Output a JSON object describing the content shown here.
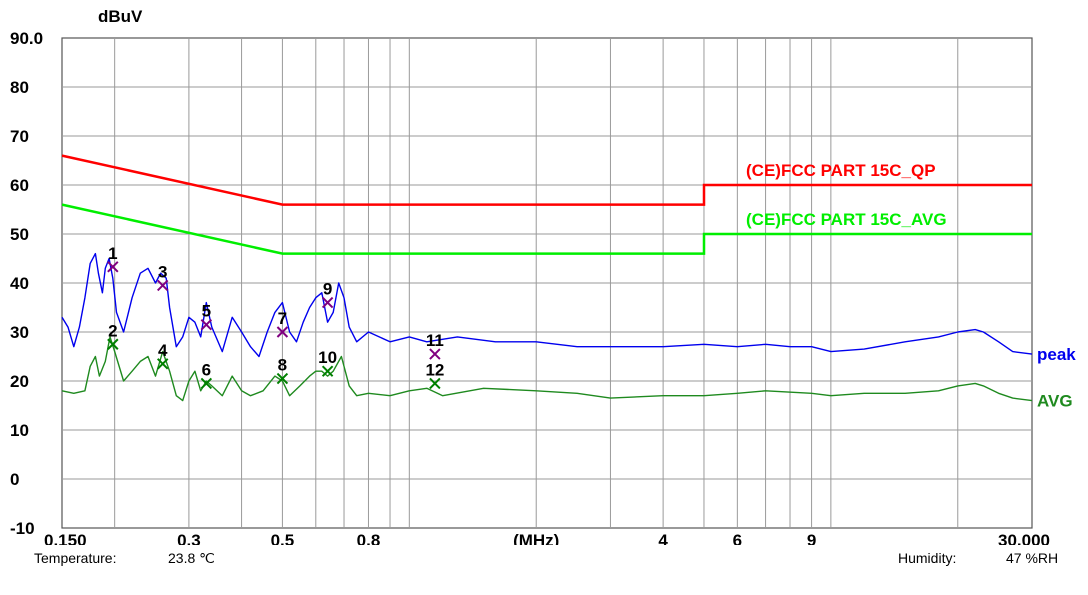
{
  "chart_data": {
    "type": "line",
    "ylabel": "dBuV",
    "xlabel": "(MHz)",
    "ylim": [
      -10,
      90
    ],
    "xlim": [
      0.15,
      30
    ],
    "x_scale": "log",
    "grid": true,
    "y_ticks": [
      "90.0",
      "80",
      "70",
      "60",
      "50",
      "40",
      "30",
      "20",
      "10",
      "0",
      "-10"
    ],
    "x_ticks": [
      {
        "label": "0.150",
        "value": 0.15
      },
      {
        "label": "0.3",
        "value": 0.3
      },
      {
        "label": "0.5",
        "value": 0.5
      },
      {
        "label": "0.8",
        "value": 0.8
      },
      {
        "label": "(MHz)",
        "value": 2.0
      },
      {
        "label": "4",
        "value": 4
      },
      {
        "label": "6",
        "value": 6
      },
      {
        "label": "9",
        "value": 9
      },
      {
        "label": "30.000",
        "value": 30
      }
    ],
    "limits": [
      {
        "name": "(CE)FCC PART 15C_QP",
        "color": "#ff0000",
        "points": [
          [
            0.15,
            66
          ],
          [
            0.5,
            56
          ],
          [
            5,
            56
          ],
          [
            5,
            60
          ],
          [
            30,
            60
          ]
        ]
      },
      {
        "name": "(CE)FCC PART 15C_AVG",
        "color": "#00ee00",
        "points": [
          [
            0.15,
            56
          ],
          [
            0.5,
            46
          ],
          [
            5,
            46
          ],
          [
            5,
            50
          ],
          [
            30,
            50
          ]
        ]
      }
    ],
    "series": [
      {
        "name": "peak",
        "color": "#0000ee",
        "points": [
          [
            0.15,
            33
          ],
          [
            0.155,
            31
          ],
          [
            0.16,
            27
          ],
          [
            0.165,
            31
          ],
          [
            0.17,
            37
          ],
          [
            0.175,
            44
          ],
          [
            0.18,
            46
          ],
          [
            0.183,
            42
          ],
          [
            0.187,
            38
          ],
          [
            0.19,
            43
          ],
          [
            0.194,
            45
          ],
          [
            0.198,
            41
          ],
          [
            0.202,
            34
          ],
          [
            0.21,
            30
          ],
          [
            0.22,
            37
          ],
          [
            0.23,
            42
          ],
          [
            0.24,
            43
          ],
          [
            0.25,
            40
          ],
          [
            0.257,
            42
          ],
          [
            0.265,
            41
          ],
          [
            0.27,
            35
          ],
          [
            0.28,
            27
          ],
          [
            0.29,
            29
          ],
          [
            0.3,
            33
          ],
          [
            0.31,
            32
          ],
          [
            0.32,
            29
          ],
          [
            0.33,
            36
          ],
          [
            0.34,
            31
          ],
          [
            0.36,
            26
          ],
          [
            0.38,
            33
          ],
          [
            0.4,
            30
          ],
          [
            0.42,
            27
          ],
          [
            0.44,
            25
          ],
          [
            0.46,
            30
          ],
          [
            0.48,
            34
          ],
          [
            0.5,
            36
          ],
          [
            0.52,
            30
          ],
          [
            0.54,
            28
          ],
          [
            0.56,
            32
          ],
          [
            0.58,
            35
          ],
          [
            0.6,
            37
          ],
          [
            0.62,
            38
          ],
          [
            0.64,
            32
          ],
          [
            0.66,
            34
          ],
          [
            0.68,
            40
          ],
          [
            0.7,
            37
          ],
          [
            0.72,
            31
          ],
          [
            0.75,
            28
          ],
          [
            0.8,
            30
          ],
          [
            0.9,
            28
          ],
          [
            1.0,
            29
          ],
          [
            1.1,
            28
          ],
          [
            1.3,
            29
          ],
          [
            1.6,
            28
          ],
          [
            2.0,
            28
          ],
          [
            2.5,
            27
          ],
          [
            3,
            27
          ],
          [
            4,
            27
          ],
          [
            5,
            27.5
          ],
          [
            6,
            27
          ],
          [
            7,
            27.5
          ],
          [
            8,
            27
          ],
          [
            9,
            27
          ],
          [
            10,
            26
          ],
          [
            12,
            26.5
          ],
          [
            15,
            28
          ],
          [
            18,
            29
          ],
          [
            20,
            30
          ],
          [
            22,
            30.5
          ],
          [
            23,
            30
          ],
          [
            25,
            28
          ],
          [
            27,
            26
          ],
          [
            30,
            25.5
          ]
        ]
      },
      {
        "name": "AVG",
        "color": "#1f8a1f",
        "points": [
          [
            0.15,
            18
          ],
          [
            0.16,
            17.5
          ],
          [
            0.17,
            18
          ],
          [
            0.175,
            23
          ],
          [
            0.18,
            25
          ],
          [
            0.184,
            21
          ],
          [
            0.19,
            24
          ],
          [
            0.195,
            29
          ],
          [
            0.2,
            26
          ],
          [
            0.21,
            20
          ],
          [
            0.22,
            22
          ],
          [
            0.23,
            24
          ],
          [
            0.24,
            25
          ],
          [
            0.25,
            21
          ],
          [
            0.26,
            26
          ],
          [
            0.27,
            22
          ],
          [
            0.28,
            17
          ],
          [
            0.29,
            16
          ],
          [
            0.3,
            20
          ],
          [
            0.31,
            22
          ],
          [
            0.32,
            18
          ],
          [
            0.33,
            20
          ],
          [
            0.34,
            19
          ],
          [
            0.36,
            17
          ],
          [
            0.38,
            21
          ],
          [
            0.4,
            18
          ],
          [
            0.42,
            17
          ],
          [
            0.45,
            18
          ],
          [
            0.48,
            21
          ],
          [
            0.5,
            20
          ],
          [
            0.52,
            17
          ],
          [
            0.55,
            19
          ],
          [
            0.58,
            21
          ],
          [
            0.6,
            22
          ],
          [
            0.62,
            22
          ],
          [
            0.64,
            21
          ],
          [
            0.66,
            22
          ],
          [
            0.69,
            25
          ],
          [
            0.72,
            19
          ],
          [
            0.75,
            17
          ],
          [
            0.8,
            17.5
          ],
          [
            0.9,
            17
          ],
          [
            1.0,
            18
          ],
          [
            1.1,
            18.5
          ],
          [
            1.2,
            17
          ],
          [
            1.5,
            18.5
          ],
          [
            2,
            18
          ],
          [
            2.5,
            17.5
          ],
          [
            3,
            16.5
          ],
          [
            4,
            17
          ],
          [
            5,
            17
          ],
          [
            6,
            17.5
          ],
          [
            7,
            18
          ],
          [
            9,
            17.5
          ],
          [
            10,
            17
          ],
          [
            12,
            17.5
          ],
          [
            15,
            17.5
          ],
          [
            18,
            18
          ],
          [
            20,
            19
          ],
          [
            22,
            19.5
          ],
          [
            23,
            19
          ],
          [
            25,
            17.5
          ],
          [
            27,
            16.5
          ],
          [
            30,
            16
          ]
        ]
      }
    ],
    "markers": [
      {
        "label": "1",
        "freq": 0.198,
        "level": 43.3,
        "color": "#800080"
      },
      {
        "label": "2",
        "freq": 0.198,
        "level": 27.5,
        "color": "#008000"
      },
      {
        "label": "3",
        "freq": 0.26,
        "level": 39.5,
        "color": "#800080"
      },
      {
        "label": "4",
        "freq": 0.26,
        "level": 23.5,
        "color": "#008000"
      },
      {
        "label": "5",
        "freq": 0.33,
        "level": 31.5,
        "color": "#800080"
      },
      {
        "label": "6",
        "freq": 0.33,
        "level": 19.5,
        "color": "#008000"
      },
      {
        "label": "7",
        "freq": 0.5,
        "level": 30,
        "color": "#800080"
      },
      {
        "label": "8",
        "freq": 0.5,
        "level": 20.5,
        "color": "#008000"
      },
      {
        "label": "9",
        "freq": 0.64,
        "level": 36,
        "color": "#800080"
      },
      {
        "label": "10",
        "freq": 0.64,
        "level": 22,
        "color": "#008000"
      },
      {
        "label": "11",
        "freq": 1.15,
        "level": 25.5,
        "color": "#800080"
      },
      {
        "label": "12",
        "freq": 1.15,
        "level": 19.5,
        "color": "#008000"
      }
    ]
  },
  "footer": {
    "temperature_label": "Temperature:",
    "temperature_value": "23.8 ℃",
    "humidity_label": "Humidity:",
    "humidity_value": "47 %RH"
  }
}
